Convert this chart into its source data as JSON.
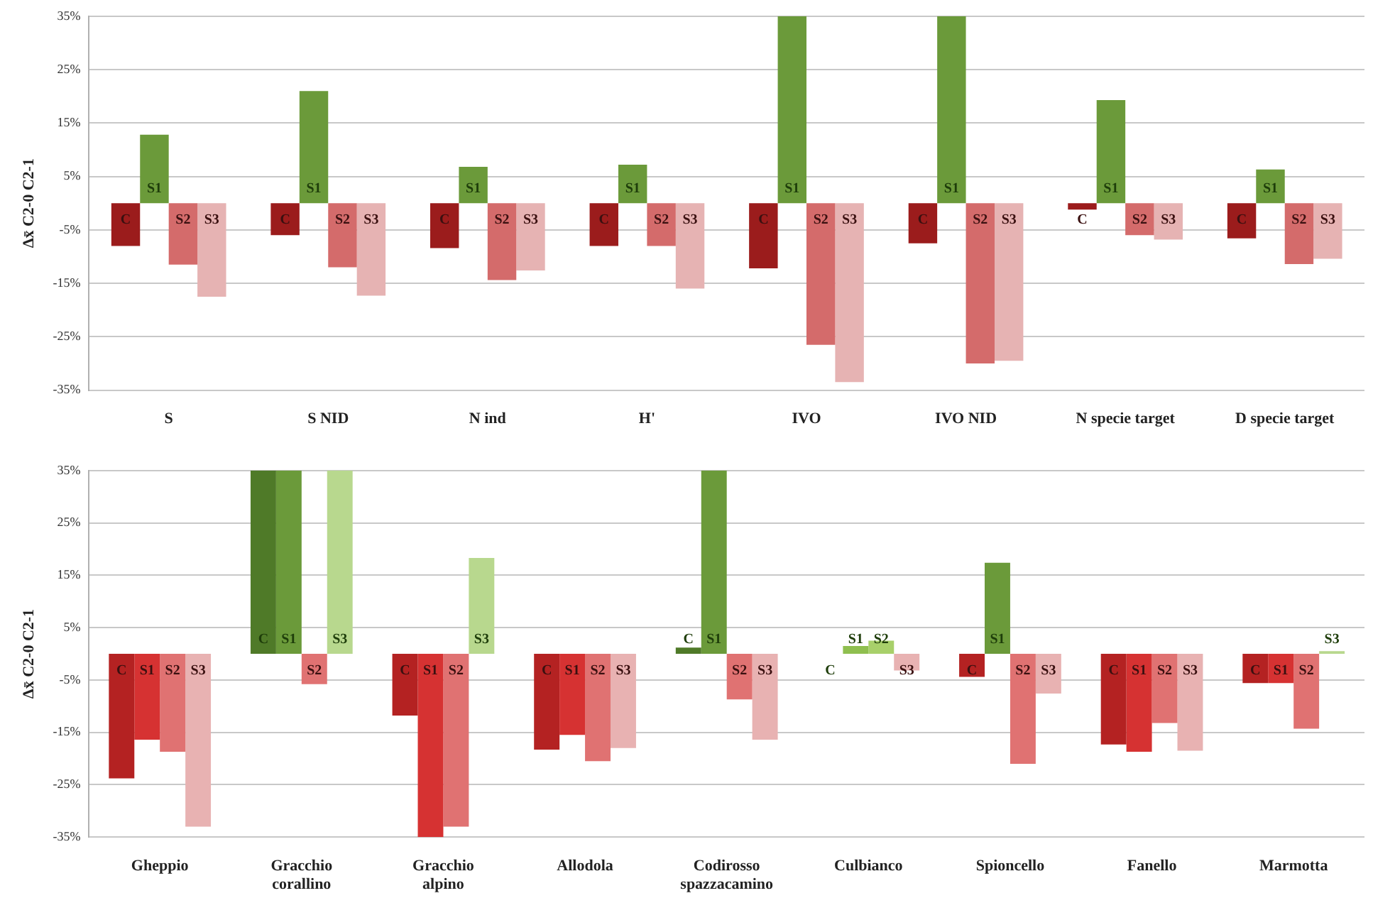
{
  "chart_data": [
    {
      "type": "bar",
      "ylabel": "Δx̄ C2-0 C2-1",
      "categories": [
        "S",
        "S NID",
        "N ind",
        "H'",
        "IVO",
        "IVO NID",
        "N specie target",
        "D specie target"
      ],
      "series": [
        {
          "name": "C",
          "colors": [
            "#9b1c1c",
            "#9b1c1c",
            "#9b1c1c",
            "#9b1c1c",
            "#9b1c1c",
            "#9b1c1c",
            "#9b1c1c",
            "#9b1c1c"
          ],
          "values": [
            -8,
            -6,
            -8.4,
            -8,
            -12.2,
            -7.5,
            -1.2,
            -6.6
          ]
        },
        {
          "name": "S1",
          "colors": [
            "#6b9a3a",
            "#6b9a3a",
            "#6b9a3a",
            "#6b9a3a",
            "#6b9a3a",
            "#6b9a3a",
            "#6b9a3a",
            "#6b9a3a"
          ],
          "values": [
            12.8,
            21,
            6.8,
            7.2,
            35,
            35,
            19.3,
            6.3
          ]
        },
        {
          "name": "S2",
          "colors": [
            "#d46b6b",
            "#d46b6b",
            "#d46b6b",
            "#d46b6b",
            "#d46b6b",
            "#d46b6b",
            "#d46b6b",
            "#d46b6b"
          ],
          "values": [
            -11.5,
            -12,
            -14.4,
            -8,
            -26.5,
            -30,
            -6,
            -11.4
          ]
        },
        {
          "name": "S3",
          "colors": [
            "#e6b3b3",
            "#e6b3b3",
            "#e6b3b3",
            "#e6b3b3",
            "#e6b3b3",
            "#e6b3b3",
            "#e6b3b3",
            "#e6b3b3"
          ],
          "values": [
            -17.5,
            -17.3,
            -12.6,
            -16,
            -33.5,
            -29.5,
            -6.8,
            -10.4
          ]
        }
      ],
      "ylim": [
        -35,
        35
      ],
      "yticks": [
        {
          "value": -35,
          "label": "-35%"
        },
        {
          "value": -25,
          "label": "-25%"
        },
        {
          "value": -15,
          "label": "-15%"
        },
        {
          "value": -5,
          "label": "-5%"
        },
        {
          "value": 5,
          "label": "5%"
        },
        {
          "value": 15,
          "label": "15%"
        },
        {
          "value": 25,
          "label": "25%"
        },
        {
          "value": 35,
          "label": "35%"
        }
      ],
      "grid": "y"
    },
    {
      "type": "bar",
      "ylabel": "Δx̄ C2-0 C2-1",
      "categories": [
        "Gheppio",
        "Gracchio corallino",
        "Gracchio alpino",
        "Allodola",
        "Codirosso spazzacamino",
        "Culbianco",
        "Spioncello",
        "Fanello",
        "Marmotta"
      ],
      "series": [
        {
          "name": "C",
          "colors": [
            "#b42222",
            "#4f7a28",
            "#b42222",
            "#b42222",
            "#4f7a28",
            "#4f7a28",
            "#b42222",
            "#b42222",
            "#b42222"
          ],
          "values": [
            -23.8,
            35,
            -11.8,
            -18.3,
            1.2,
            0,
            -4.4,
            -17.3,
            -5.6
          ]
        },
        {
          "name": "S1",
          "colors": [
            "#d63232",
            "#6b9a3a",
            "#d63232",
            "#d63232",
            "#6b9a3a",
            "#8fbf4f",
            "#6b9a3a",
            "#d63232",
            "#d63232"
          ],
          "values": [
            -16.4,
            35,
            -35,
            -15.5,
            35,
            1.5,
            17.4,
            -18.7,
            -5.6
          ]
        },
        {
          "name": "S2",
          "colors": [
            "#e07272",
            "#e07272",
            "#e07272",
            "#e07272",
            "#e07272",
            "#a8d06a",
            "#e07272",
            "#e07272",
            "#e07272"
          ],
          "values": [
            -18.7,
            -5.8,
            -33,
            -20.5,
            -8.7,
            2.5,
            -21,
            -13.2,
            -14.3
          ]
        },
        {
          "name": "S3",
          "colors": [
            "#e8b2b2",
            "#b8d88e",
            "#b8d88e",
            "#e8b2b2",
            "#e8b2b2",
            "#e8b2b2",
            "#e8b2b2",
            "#e8b2b2",
            "#b8d88e"
          ],
          "values": [
            -33,
            35,
            18.3,
            -18,
            -16.4,
            -3.2,
            -7.6,
            -18.5,
            0.5
          ]
        }
      ],
      "ylim": [
        -35,
        35
      ],
      "yticks": [
        {
          "value": -35,
          "label": "-35%"
        },
        {
          "value": -25,
          "label": "-25%"
        },
        {
          "value": -15,
          "label": "-15%"
        },
        {
          "value": -5,
          "label": "-5%"
        },
        {
          "value": 5,
          "label": "5%"
        },
        {
          "value": 15,
          "label": "15%"
        },
        {
          "value": 25,
          "label": "25%"
        },
        {
          "value": 35,
          "label": "35%"
        }
      ],
      "grid": "y"
    }
  ]
}
